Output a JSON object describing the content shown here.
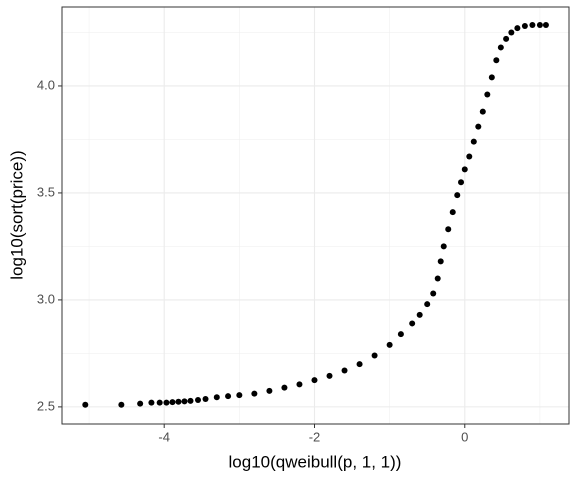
{
  "chart_data": {
    "type": "scatter",
    "x_label": "log10(qweibull(p, 1, 1))",
    "y_label": "log10(sort(price))",
    "x": [
      -5.05,
      -4.57,
      -4.32,
      -4.17,
      -4.06,
      -3.97,
      -3.89,
      -3.81,
      -3.73,
      -3.65,
      -3.55,
      -3.45,
      -3.3,
      -3.15,
      -3.0,
      -2.8,
      -2.6,
      -2.4,
      -2.2,
      -2.0,
      -1.8,
      -1.6,
      -1.4,
      -1.2,
      -1.0,
      -0.85,
      -0.7,
      -0.6,
      -0.5,
      -0.42,
      -0.36,
      -0.32,
      -0.28,
      -0.22,
      -0.16,
      -0.1,
      -0.05,
      0.0,
      0.06,
      0.12,
      0.18,
      0.24,
      0.3,
      0.36,
      0.42,
      0.48,
      0.55,
      0.62,
      0.7,
      0.8,
      0.9,
      1.0,
      1.08
    ],
    "values": [
      2.51,
      2.51,
      2.515,
      2.52,
      2.52,
      2.52,
      2.522,
      2.524,
      2.526,
      2.528,
      2.532,
      2.537,
      2.545,
      2.55,
      2.555,
      2.562,
      2.575,
      2.59,
      2.605,
      2.625,
      2.645,
      2.67,
      2.7,
      2.74,
      2.79,
      2.84,
      2.89,
      2.93,
      2.98,
      3.03,
      3.1,
      3.18,
      3.25,
      3.33,
      3.41,
      3.49,
      3.55,
      3.61,
      3.67,
      3.74,
      3.81,
      3.88,
      3.96,
      4.04,
      4.12,
      4.18,
      4.22,
      4.25,
      4.27,
      4.28,
      4.285,
      4.285,
      4.285
    ],
    "color": "#000000",
    "xlim": [
      -5.36,
      1.387
    ],
    "ylim": [
      2.42,
      4.369
    ],
    "xticks": [
      -4,
      -2,
      0
    ],
    "yticks": [
      2.5,
      {
        "value": 3,
        "label": "3.0"
      },
      3.5,
      {
        "value": 4,
        "label": "4.0"
      }
    ],
    "grid": true
  }
}
